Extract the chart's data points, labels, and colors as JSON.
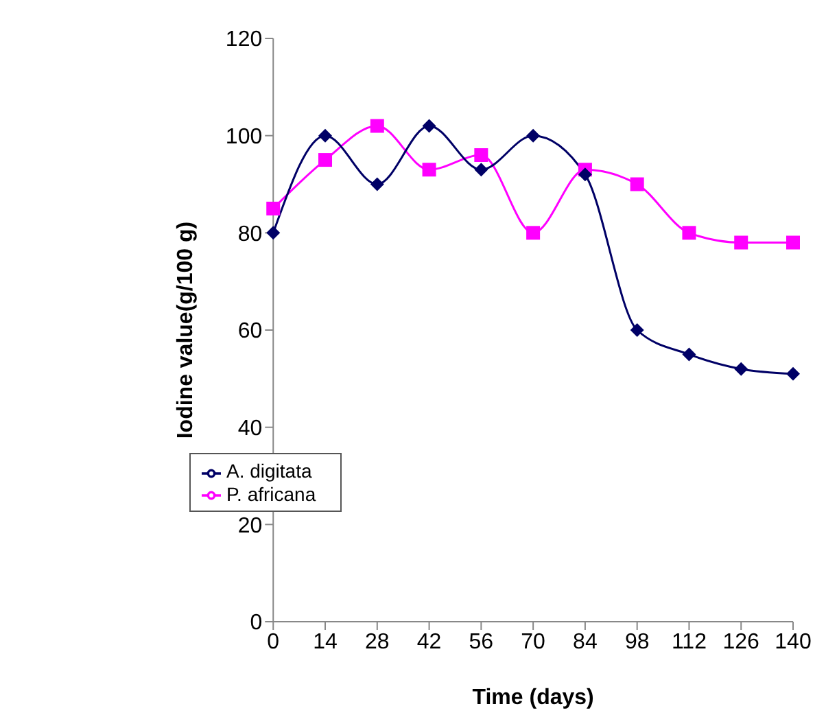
{
  "chart_data": {
    "type": "line",
    "xlabel": "Time (days)",
    "ylabel": "Iodine value(g/100 g)",
    "categories": [
      "0",
      "14",
      "28",
      "42",
      "56",
      "70",
      "84",
      "98",
      "112",
      "126",
      "140"
    ],
    "series": [
      {
        "name": "A. digitata",
        "color": "#000066",
        "marker": "diamond",
        "values": [
          80,
          100,
          90,
          102,
          93,
          100,
          92,
          60,
          55,
          52,
          51
        ]
      },
      {
        "name": "P. africana",
        "color": "#ff00ff",
        "marker": "square",
        "values": [
          85,
          95,
          102,
          93,
          96,
          80,
          93,
          90,
          80,
          78,
          78
        ]
      }
    ],
    "ylim": [
      0,
      120
    ],
    "yticks": [
      0,
      20,
      40,
      60,
      80,
      100,
      120
    ],
    "grid": false,
    "legend": "bottom left"
  }
}
